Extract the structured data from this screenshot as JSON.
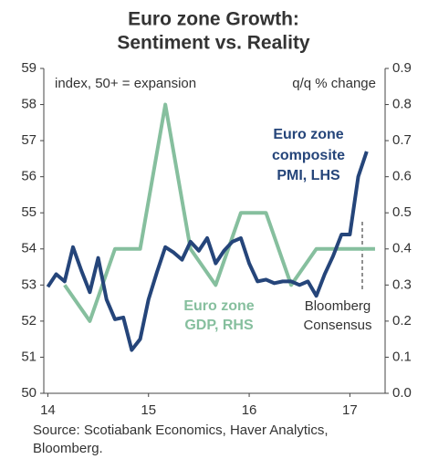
{
  "chart_data": {
    "type": "line",
    "title": [
      "Euro zone Growth:",
      "Sentiment vs. Reality"
    ],
    "annotations": {
      "left_unit": "index, 50+ = expansion",
      "right_unit": "q/q % change",
      "pmi_label": [
        "Euro zone",
        "composite",
        "PMI, LHS"
      ],
      "gdp_label": [
        "Euro zone",
        "GDP, RHS"
      ],
      "consensus_label": [
        "Bloomberg",
        "Consensus"
      ]
    },
    "source": [
      "Source: Scotiabank Economics, Haver Analytics,",
      "Bloomberg."
    ],
    "xlim": [
      13.96,
      17.35
    ],
    "xticks": [
      14,
      15,
      16,
      17
    ],
    "ylim": [
      50,
      59
    ],
    "yticks": [
      50,
      51,
      52,
      53,
      54,
      55,
      56,
      57,
      58,
      59
    ],
    "y2lim": [
      0,
      0.9
    ],
    "y2ticks": [
      {
        "value": 0,
        "label": "0.0"
      },
      0.1,
      0.2,
      0.3,
      0.4,
      0.5,
      0.6,
      0.7,
      0.8,
      0.9
    ],
    "series": [
      {
        "name": "Euro zone composite PMI, LHS",
        "color": "#25457a",
        "axis": "y",
        "x": [
          14.0,
          14.083,
          14.167,
          14.25,
          14.333,
          14.417,
          14.5,
          14.583,
          14.667,
          14.75,
          14.833,
          14.917,
          15.0,
          15.083,
          15.167,
          15.25,
          15.333,
          15.417,
          15.5,
          15.583,
          15.667,
          15.75,
          15.833,
          15.917,
          16.0,
          16.083,
          16.167,
          16.25,
          16.333,
          16.417,
          16.5,
          16.583,
          16.667,
          16.75,
          16.833,
          16.917,
          17.0,
          17.083,
          17.167
        ],
        "values": [
          52.95,
          53.3,
          53.1,
          54.05,
          53.4,
          52.8,
          53.75,
          52.6,
          52.05,
          52.1,
          51.2,
          51.5,
          52.6,
          53.35,
          54.05,
          53.9,
          53.7,
          54.2,
          53.95,
          54.3,
          53.6,
          53.95,
          54.2,
          54.3,
          53.6,
          53.1,
          53.15,
          53.05,
          53.1,
          53.1,
          53.0,
          53.1,
          52.7,
          53.3,
          53.8,
          54.4,
          54.4,
          56.0,
          56.7
        ]
      },
      {
        "name": "Euro zone GDP, RHS",
        "color": "#86bf9e",
        "axis": "y2",
        "x": [
          14.167,
          14.417,
          14.667,
          14.917,
          15.167,
          15.417,
          15.667,
          15.917,
          16.167,
          16.417,
          16.667,
          16.917,
          17.25
        ],
        "values": [
          0.3,
          0.2,
          0.4,
          0.4,
          0.8,
          0.4,
          0.3,
          0.5,
          0.5,
          0.3,
          0.4,
          0.4,
          0.4
        ]
      }
    ]
  }
}
